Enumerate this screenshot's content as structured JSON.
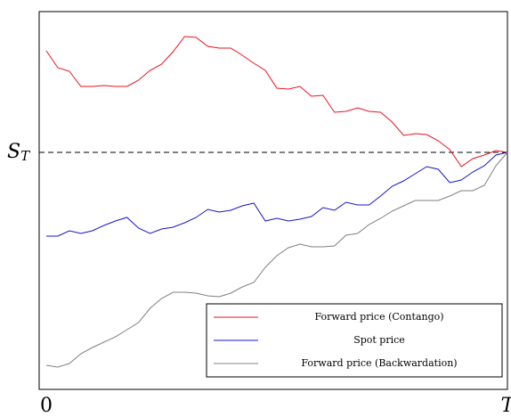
{
  "chart_data": {
    "type": "line",
    "x": [
      0,
      1,
      2,
      3,
      4,
      5,
      6,
      7,
      8,
      9,
      10,
      11,
      12,
      13,
      14,
      15,
      16,
      17,
      18,
      19,
      20,
      21,
      22,
      23,
      24,
      25,
      26,
      27,
      28,
      29,
      30,
      31,
      32,
      33,
      34,
      35,
      36,
      37,
      38,
      39,
      40
    ],
    "series": [
      {
        "name": "Forward price (Contango)",
        "color": "#e8141e",
        "values": [
          380,
          361,
          357,
          340,
          340,
          341,
          340,
          340,
          347,
          358,
          365,
          379,
          396,
          395,
          385,
          383,
          383,
          375,
          366,
          358,
          338,
          337,
          340,
          329,
          330,
          311,
          312,
          316,
          312,
          311,
          300,
          285,
          287,
          286,
          279,
          269,
          250,
          259,
          263,
          268,
          266
        ]
      },
      {
        "name": "Spot price",
        "color": "#1414d2",
        "values": [
          172,
          172,
          178,
          175,
          178,
          184,
          189,
          193,
          181,
          175,
          180,
          182,
          187,
          193,
          202,
          199,
          201,
          206,
          209,
          189,
          192,
          189,
          191,
          194,
          204,
          201,
          210,
          207,
          207,
          217,
          228,
          234,
          242,
          250,
          247,
          232,
          235,
          244,
          251,
          263,
          266
        ]
      },
      {
        "name": "Forward price (Backwardation)",
        "color": "#808080",
        "values": [
          27,
          25,
          29,
          40,
          47,
          53,
          59,
          67,
          75,
          91,
          102,
          109,
          109,
          108,
          105,
          104,
          108,
          115,
          120,
          137,
          150,
          159,
          163,
          160,
          160,
          161,
          173,
          175,
          185,
          192,
          200,
          206,
          212,
          212,
          212,
          217,
          223,
          223,
          229,
          251,
          266
        ]
      }
    ],
    "xlim": [
      0,
      40
    ],
    "xticks": [
      0,
      {
        "value": 40,
        "label": "T"
      }
    ],
    "ylim": [
      0,
      424
    ],
    "yticks": [
      {
        "value": 266,
        "label": "S",
        "subscript": "T"
      }
    ],
    "grid": true,
    "legend": "lower right"
  }
}
